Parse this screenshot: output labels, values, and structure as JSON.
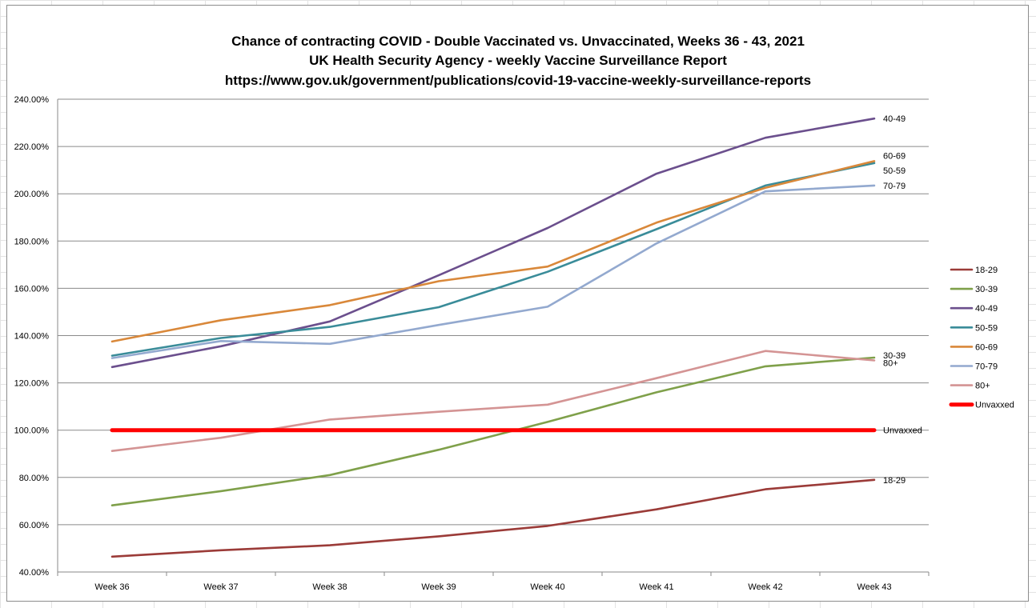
{
  "chart_data": {
    "type": "line",
    "title_lines": [
      "Chance of contracting COVID - Double Vaccinated vs. Unvaccinated, Weeks 36 - 43, 2021",
      "UK Health Security Agency - weekly Vaccine Surveillance Report",
      "https://www.gov.uk/government/publications/covid-19-vaccine-weekly-surveillance-reports"
    ],
    "categories": [
      "Week 36",
      "Week 37",
      "Week 38",
      "Week 39",
      "Week 40",
      "Week 41",
      "Week 42",
      "Week 43"
    ],
    "ylim": [
      40,
      240
    ],
    "ytick_step": 20,
    "ytick_format": "percent_2dp",
    "grid": "horizontal",
    "legend_position": "right",
    "series": [
      {
        "name": "18-29",
        "end_label": "18-29",
        "color": "#9b3b38",
        "values": [
          46.5,
          49.2,
          51.3,
          55.1,
          59.5,
          66.5,
          75.0,
          79.0
        ]
      },
      {
        "name": "30-39",
        "end_label": "30-39",
        "color": "#7fa04a",
        "values": [
          68.2,
          74.2,
          81.0,
          91.7,
          103.5,
          116.0,
          127.0,
          130.7
        ]
      },
      {
        "name": "40-49",
        "end_label": "40-49",
        "color": "#6b4f8d",
        "values": [
          126.7,
          135.5,
          146.0,
          165.5,
          185.5,
          208.5,
          223.7,
          231.8
        ]
      },
      {
        "name": "50-59",
        "end_label": "50-59",
        "color": "#3a8c99",
        "values": [
          131.5,
          139.0,
          143.7,
          152.0,
          167.0,
          185.0,
          203.5,
          213.0
        ]
      },
      {
        "name": "60-69",
        "end_label": "60-69",
        "color": "#d9883a",
        "values": [
          137.5,
          146.5,
          152.9,
          163.0,
          169.2,
          187.8,
          202.5,
          213.8
        ]
      },
      {
        "name": "70-79",
        "end_label": "70-79",
        "color": "#93a9cf",
        "values": [
          130.5,
          137.7,
          136.5,
          144.5,
          152.2,
          179.0,
          201.0,
          203.5
        ]
      },
      {
        "name": "80+",
        "end_label": "80+",
        "color": "#d49494",
        "values": [
          91.2,
          96.8,
          104.5,
          107.8,
          110.8,
          122.0,
          133.5,
          129.5
        ]
      },
      {
        "name": "Unvaxxed",
        "end_label": "Unvaxxed",
        "color": "#ff0000",
        "values": [
          100,
          100,
          100,
          100,
          100,
          100,
          100,
          100
        ],
        "thick": true
      }
    ]
  }
}
